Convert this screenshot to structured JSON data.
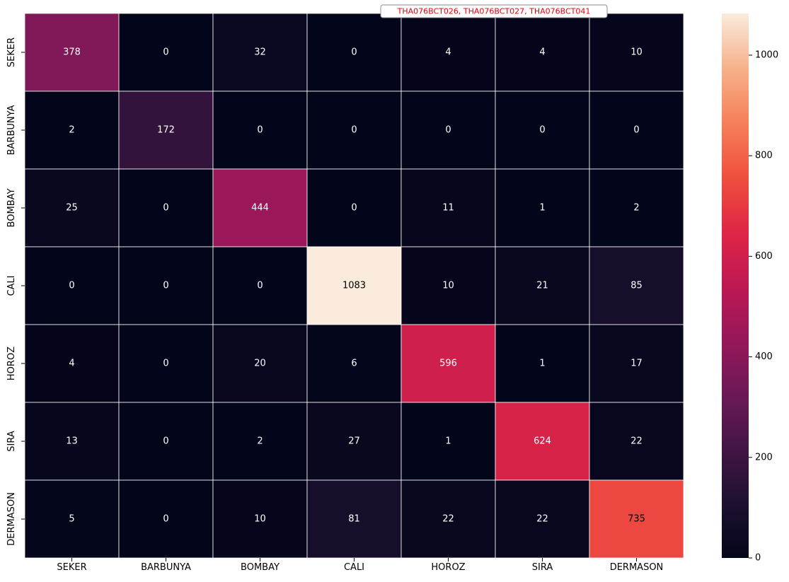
{
  "chart_data": {
    "type": "heatmap",
    "annotation": "THA076BCT026, THA076BCT027, THA076BCT041",
    "x_labels": [
      "SEKER",
      "BARBUNYA",
      "BOMBAY",
      "CALI",
      "HOROZ",
      "SIRA",
      "DERMASON"
    ],
    "y_labels": [
      "SEKER",
      "BARBUNYA",
      "BOMBAY",
      "CALI",
      "HOROZ",
      "SIRA",
      "DERMASON"
    ],
    "values": [
      [
        378,
        0,
        32,
        0,
        4,
        4,
        10
      ],
      [
        2,
        172,
        0,
        0,
        0,
        0,
        0
      ],
      [
        25,
        0,
        444,
        0,
        11,
        1,
        2
      ],
      [
        0,
        0,
        0,
        1083,
        10,
        21,
        85
      ],
      [
        4,
        0,
        20,
        6,
        596,
        1,
        17
      ],
      [
        13,
        0,
        2,
        27,
        1,
        624,
        22
      ],
      [
        5,
        0,
        10,
        81,
        22,
        22,
        735
      ]
    ],
    "colorbar": {
      "min": 0,
      "max": 1083,
      "ticks": [
        0,
        200,
        400,
        600,
        800,
        1000
      ],
      "colormap": "rocket"
    },
    "grid": true,
    "cell_border_color": "#ffffff"
  }
}
